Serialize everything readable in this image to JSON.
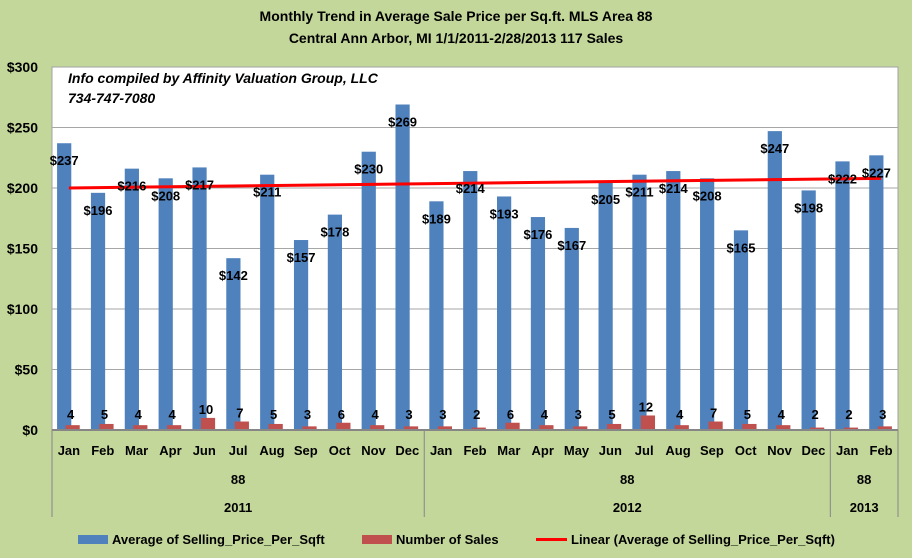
{
  "chart_data": {
    "type": "bar",
    "title": "Monthly Trend in Average Sale Price per Sq.ft. MLS Area 88",
    "subtitle": "Central  Ann Arbor,  MI    1/1/2011-2/28/2013  117 Sales",
    "annotation": [
      "Info compiled by Affinity Valuation Group, LLC",
      "734-747-7080"
    ],
    "xlabel": "",
    "ylabel": "",
    "ylim": [
      0,
      300
    ],
    "yticks": [
      0,
      50,
      100,
      150,
      200,
      250,
      300
    ],
    "ytick_labels": [
      "$0",
      "$50",
      "$100",
      "$150",
      "$200",
      "$250",
      "$300"
    ],
    "grid": true,
    "legend_position": "bottom",
    "categories": [
      "Jan",
      "Feb",
      "Mar",
      "Apr",
      "Jun",
      "Jul",
      "Aug",
      "Sep",
      "Oct",
      "Nov",
      "Dec",
      "Jan",
      "Feb",
      "Mar",
      "Apr",
      "May",
      "Jun",
      "Jul",
      "Aug",
      "Sep",
      "Oct",
      "Nov",
      "Dec",
      "Jan",
      "Feb"
    ],
    "groups": [
      {
        "area": "88",
        "year": "2011",
        "count": 11
      },
      {
        "area": "88",
        "year": "2012",
        "count": 12
      },
      {
        "area": "88",
        "year": "2013",
        "count": 2
      }
    ],
    "series": [
      {
        "name": "Average of Selling_Price_Per_Sqft",
        "color": "#4f81bd",
        "label_prefix": "$",
        "values": [
          237,
          196,
          216,
          208,
          217,
          142,
          211,
          157,
          178,
          230,
          269,
          189,
          214,
          193,
          176,
          167,
          205,
          211,
          214,
          208,
          165,
          247,
          198,
          222,
          227
        ]
      },
      {
        "name": "Number of Sales",
        "color": "#c0504d",
        "label_prefix": "",
        "values": [
          4,
          5,
          4,
          4,
          10,
          7,
          5,
          3,
          6,
          4,
          3,
          3,
          2,
          6,
          4,
          3,
          5,
          12,
          4,
          7,
          5,
          4,
          2,
          2,
          3
        ]
      }
    ],
    "trendline": {
      "name": "Linear (Average of Selling_Price_Per_Sqft)",
      "color": "#ff0000",
      "start": 200,
      "end": 208
    }
  }
}
